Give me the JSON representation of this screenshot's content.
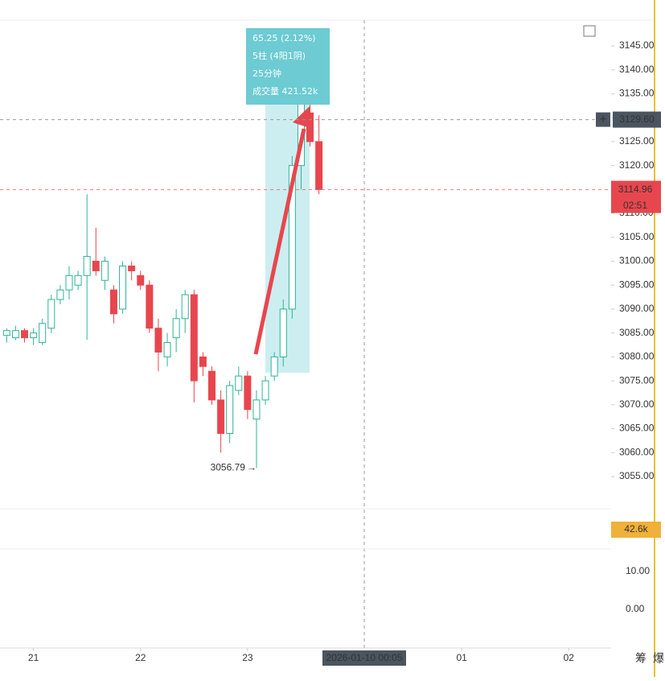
{
  "chart_data": {
    "type": "candlestick",
    "categories": [
      null,
      null,
      null,
      null,
      null,
      null,
      null,
      null,
      null,
      null,
      null,
      null,
      null,
      null,
      null,
      null,
      null,
      null,
      null,
      null,
      null,
      null,
      null,
      null,
      null,
      null,
      null,
      null,
      null,
      null,
      null,
      null,
      null,
      null,
      null,
      null
    ],
    "open": [
      3084.5,
      3084,
      3085.5,
      3084,
      3083,
      3086,
      3092,
      3094,
      3095,
      3097,
      3100,
      3096,
      3094,
      3090,
      3099,
      3097,
      3095,
      3086,
      3080,
      3084,
      3088,
      3093,
      3080,
      3077,
      3071,
      3064,
      3073,
      3076,
      3067,
      3071,
      3076,
      3080,
      3090,
      3120,
      3131,
      3125
    ],
    "high": [
      3086,
      3086.5,
      3086,
      3086,
      3088,
      3093,
      3095,
      3099,
      3098,
      3114,
      3107,
      3101,
      3095,
      3100,
      3100,
      3098,
      3096,
      3088,
      3085,
      3090,
      3094,
      3094,
      3081,
      3078,
      3073,
      3075,
      3078,
      3077,
      3073,
      3076,
      3081,
      3092,
      3122,
      3141,
      3133,
      3130.5
    ],
    "low": [
      3083,
      3083.5,
      3083,
      3082.5,
      3082.5,
      3085,
      3091,
      3092,
      3094,
      3083.6,
      3097,
      3094,
      3087,
      3089,
      3096,
      3094,
      3085,
      3077,
      3078,
      3081,
      3085,
      3070.5,
      3076,
      3070,
      3060,
      3062,
      3072,
      3067,
      3056.79,
      3070,
      3075,
      3078,
      3088,
      3115,
      3124,
      3114
    ],
    "close": [
      3085.5,
      3085.5,
      3084,
      3085,
      3087,
      3092,
      3094,
      3097,
      3097,
      3101,
      3098,
      3100,
      3089,
      3099,
      3098,
      3095,
      3086,
      3081,
      3083,
      3088,
      3093,
      3075,
      3078,
      3071,
      3064,
      3074,
      3076,
      3069,
      3071,
      3075,
      3080,
      3090,
      3120,
      3135,
      3125,
      3115
    ],
    "up_color": "#2bb596",
    "down_color": "#e8464e",
    "xlim": [
      -0.75,
      67.75
    ],
    "xticks": [
      {
        "value": 3,
        "label": "21"
      },
      {
        "value": 15,
        "label": "22"
      },
      {
        "value": 27,
        "label": "23"
      },
      {
        "value": 51,
        "label": "01"
      },
      {
        "value": 63,
        "label": "02"
      }
    ],
    "ylim": [
      3048.6,
      3154.6
    ],
    "yticks": [
      {
        "value": 3055,
        "label": "3055.00"
      },
      {
        "value": 3060,
        "label": "3060.00"
      },
      {
        "value": 3065,
        "label": "3065.00"
      },
      {
        "value": 3070,
        "label": "3070.00"
      },
      {
        "value": 3075,
        "label": "3075.00"
      },
      {
        "value": 3080,
        "label": "3080.00"
      },
      {
        "value": 3085,
        "label": "3085.00"
      },
      {
        "value": 3090,
        "label": "3090.00"
      },
      {
        "value": 3095,
        "label": "3095.00"
      },
      {
        "value": 3100,
        "label": "3100.00"
      },
      {
        "value": 3105,
        "label": "3105.00"
      },
      {
        "value": 3110,
        "label": "3110.00"
      },
      {
        "value": 3115,
        "label": "3115.00"
      },
      {
        "value": 3120,
        "label": "3120.00"
      },
      {
        "value": 3125,
        "label": "3125.00"
      },
      {
        "value": 3130,
        "label": "3130.00"
      },
      {
        "value": 3135,
        "label": "3135.00"
      },
      {
        "value": 3140,
        "label": "3140.00"
      },
      {
        "value": 3145,
        "label": "3145.00"
      }
    ],
    "min_label": "3056.79",
    "crosshair_price": "3129.60",
    "last_price": "3114.96",
    "countdown": "02:51",
    "crosshair_time": "2026-01-10 00:05",
    "tooltip": [
      "65.25 (2.12%)",
      "5柱 (4阳1阴)",
      "25分钟",
      "成交量 421.52k"
    ],
    "volume_label": "42.6k",
    "macd_ticks": [
      "10.00",
      "0.00"
    ],
    "side_labels": [
      "筹",
      "爆"
    ]
  }
}
